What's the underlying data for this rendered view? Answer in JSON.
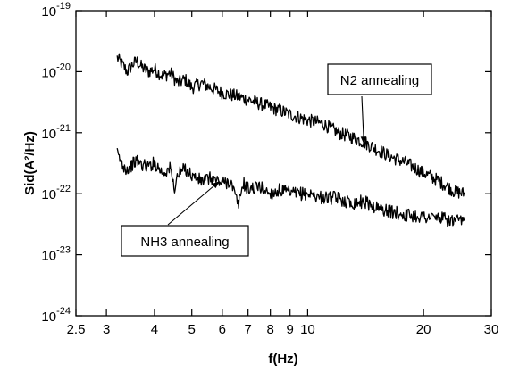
{
  "chart_data": {
    "type": "line",
    "xlabel": "f(Hz)",
    "ylabel": "Sid(A²/Hz)",
    "x_scale": "log",
    "y_scale": "log",
    "xlim": [
      2.5,
      30
    ],
    "ylim": [
      1e-24,
      1e-19
    ],
    "grid": false,
    "x_ticks": [
      {
        "value": 2.5,
        "label": "2.5"
      },
      {
        "value": 3,
        "label": "3"
      },
      {
        "value": 4,
        "label": "4"
      },
      {
        "value": 5,
        "label": "5"
      },
      {
        "value": 6,
        "label": "6"
      },
      {
        "value": 7,
        "label": "7"
      },
      {
        "value": 8,
        "label": "8"
      },
      {
        "value": 9,
        "label": "9"
      },
      {
        "value": 10,
        "label": "10"
      },
      {
        "value": 20,
        "label": "20"
      },
      {
        "value": 30,
        "label": "30"
      }
    ],
    "y_ticks": [
      {
        "value": 1e-24,
        "mantissa": "10",
        "exponent": "-24"
      },
      {
        "value": 1e-23,
        "mantissa": "10",
        "exponent": "-23"
      },
      {
        "value": 1e-22,
        "mantissa": "10",
        "exponent": "-22"
      },
      {
        "value": 1e-21,
        "mantissa": "10",
        "exponent": "-21"
      },
      {
        "value": 1e-20,
        "mantissa": "10",
        "exponent": "-20"
      },
      {
        "value": 1e-19,
        "mantissa": "10",
        "exponent": "-19"
      }
    ],
    "series": [
      {
        "label": "N2 annealing",
        "x": [
          3.2,
          3.3,
          3.4,
          3.5,
          3.6,
          3.7,
          3.85,
          4.0,
          4.2,
          4.4,
          4.6,
          4.8,
          5.0,
          5.3,
          5.6,
          6.0,
          6.5,
          7.0,
          7.5,
          8.0,
          8.5,
          9.0,
          10.0,
          11.0,
          12.0,
          13.0,
          14.0,
          15.0,
          16.5,
          18.0,
          20.0,
          22.0,
          24.0,
          25.5
        ],
        "y": [
          1.7e-20,
          1.3e-20,
          1e-20,
          1.3e-20,
          1.5e-20,
          1.2e-20,
          1e-20,
          1.1e-20,
          8.5e-21,
          9.5e-21,
          6.5e-21,
          7.5e-21,
          5.5e-21,
          6.5e-21,
          5.5e-21,
          4.5e-21,
          4e-21,
          3.5e-21,
          3e-21,
          2.6e-21,
          2.3e-21,
          2e-21,
          1.6e-21,
          1.4e-21,
          1e-21,
          8.5e-22,
          7e-22,
          5.5e-22,
          4e-22,
          3.2e-22,
          2.2e-22,
          1.6e-22,
          1.1e-22,
          1e-22
        ]
      },
      {
        "label": "NH3 annealing",
        "x": [
          3.2,
          3.3,
          3.4,
          3.5,
          3.6,
          3.7,
          3.85,
          4.0,
          4.2,
          4.4,
          4.5,
          4.6,
          4.8,
          5.0,
          5.3,
          5.6,
          6.0,
          6.3,
          6.6,
          6.8,
          7.0,
          7.5,
          8.0,
          8.5,
          9.0,
          10.0,
          11.0,
          12.0,
          13.0,
          14.0,
          15.0,
          16.5,
          18.0,
          20.0,
          22.0,
          24.0,
          25.5
        ],
        "y": [
          4.5e-22,
          3e-22,
          2.5e-22,
          3e-22,
          3.5e-22,
          3e-22,
          2.8e-22,
          3.2e-22,
          2.2e-22,
          2.6e-22,
          1.2e-22,
          2e-22,
          2.6e-22,
          2e-22,
          1.6e-22,
          1.8e-22,
          1.5e-22,
          1.6e-22,
          6.5e-23,
          1.5e-22,
          1.2e-22,
          1.3e-22,
          1e-22,
          1.15e-22,
          1e-22,
          1e-22,
          8.5e-23,
          8.5e-23,
          7e-23,
          7.5e-23,
          6e-23,
          5e-23,
          4.5e-23,
          4.2e-23,
          4e-23,
          3.5e-23,
          3.5e-23
        ]
      }
    ],
    "annotations": [
      {
        "text": "N2 annealing",
        "box_anchor": "upper-right",
        "arrow_to": {
          "x": 14.0,
          "y": 6.5e-22
        }
      },
      {
        "text": "NH3 annealing",
        "box_anchor": "lower-left",
        "arrow_to": {
          "x": 5.9,
          "y": 1.6e-22
        }
      }
    ]
  }
}
